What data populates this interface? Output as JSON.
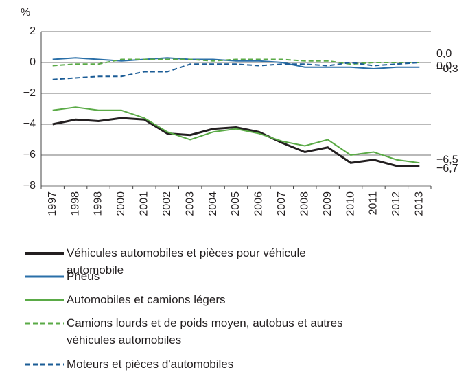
{
  "chart_data": {
    "type": "line",
    "y_label": "%",
    "categories": [
      "1997",
      "1998",
      "1998",
      "2000",
      "2001",
      "2002",
      "2003",
      "2004",
      "2005",
      "2006",
      "2007",
      "2008",
      "2009",
      "2010",
      "2011",
      "2012",
      "2013"
    ],
    "ylim": [
      -8,
      2
    ],
    "yticks": [
      {
        "value": 2,
        "label": "2"
      },
      {
        "value": 0,
        "label": "0"
      },
      {
        "value": -2,
        "label": "−2"
      },
      {
        "value": -4,
        "label": "−4"
      },
      {
        "value": -6,
        "label": "−6"
      },
      {
        "value": -8,
        "label": "−8"
      }
    ],
    "grid": true,
    "series": [
      {
        "name": "Véhicules automobiles et pièces pour véhicule automobile",
        "color": "#231f20",
        "width": 3,
        "dashed": false,
        "values": [
          -4.0,
          -3.7,
          -3.8,
          -3.6,
          -3.7,
          -4.6,
          -4.7,
          -4.3,
          -4.2,
          -4.5,
          -5.2,
          -5.8,
          -5.5,
          -6.5,
          -6.3,
          -6.7,
          -6.7
        ],
        "end_label": "−6,7"
      },
      {
        "name": "Pneus",
        "color": "#2a6fa8",
        "width": 2,
        "dashed": false,
        "values": [
          0.2,
          0.3,
          0.2,
          0.1,
          0.2,
          0.3,
          0.2,
          0.2,
          0.1,
          0.1,
          0.0,
          -0.3,
          -0.3,
          -0.3,
          -0.4,
          -0.3,
          -0.3
        ],
        "end_label": "−0,3"
      },
      {
        "name": "Automobiles et camions légers",
        "color": "#5aaa46",
        "width": 2,
        "dashed": false,
        "values": [
          -3.1,
          -2.9,
          -3.1,
          -3.1,
          -3.6,
          -4.5,
          -5.0,
          -4.5,
          -4.3,
          -4.6,
          -5.1,
          -5.4,
          -5.0,
          -6.0,
          -5.8,
          -6.3,
          -6.5
        ],
        "end_label": "−6,5"
      },
      {
        "name": "Camions lourds et de poids moyen, autobus et autres véhicules automobiles",
        "color": "#5aaa46",
        "width": 2,
        "dashed": true,
        "values": [
          -0.2,
          -0.1,
          -0.1,
          0.2,
          0.2,
          0.2,
          0.2,
          0.1,
          0.2,
          0.2,
          0.2,
          0.1,
          0.1,
          -0.1,
          0.0,
          0.0,
          0.0
        ],
        "end_label": "0,0"
      },
      {
        "name": "Moteurs et pièces d'automobiles",
        "color": "#1b5c96",
        "width": 2,
        "dashed": true,
        "values": [
          -1.1,
          -1.0,
          -0.9,
          -0.9,
          -0.6,
          -0.6,
          -0.1,
          -0.1,
          -0.1,
          -0.2,
          -0.1,
          -0.1,
          -0.2,
          0.0,
          -0.2,
          -0.1,
          0.0
        ],
        "end_label": "0,0"
      }
    ]
  }
}
